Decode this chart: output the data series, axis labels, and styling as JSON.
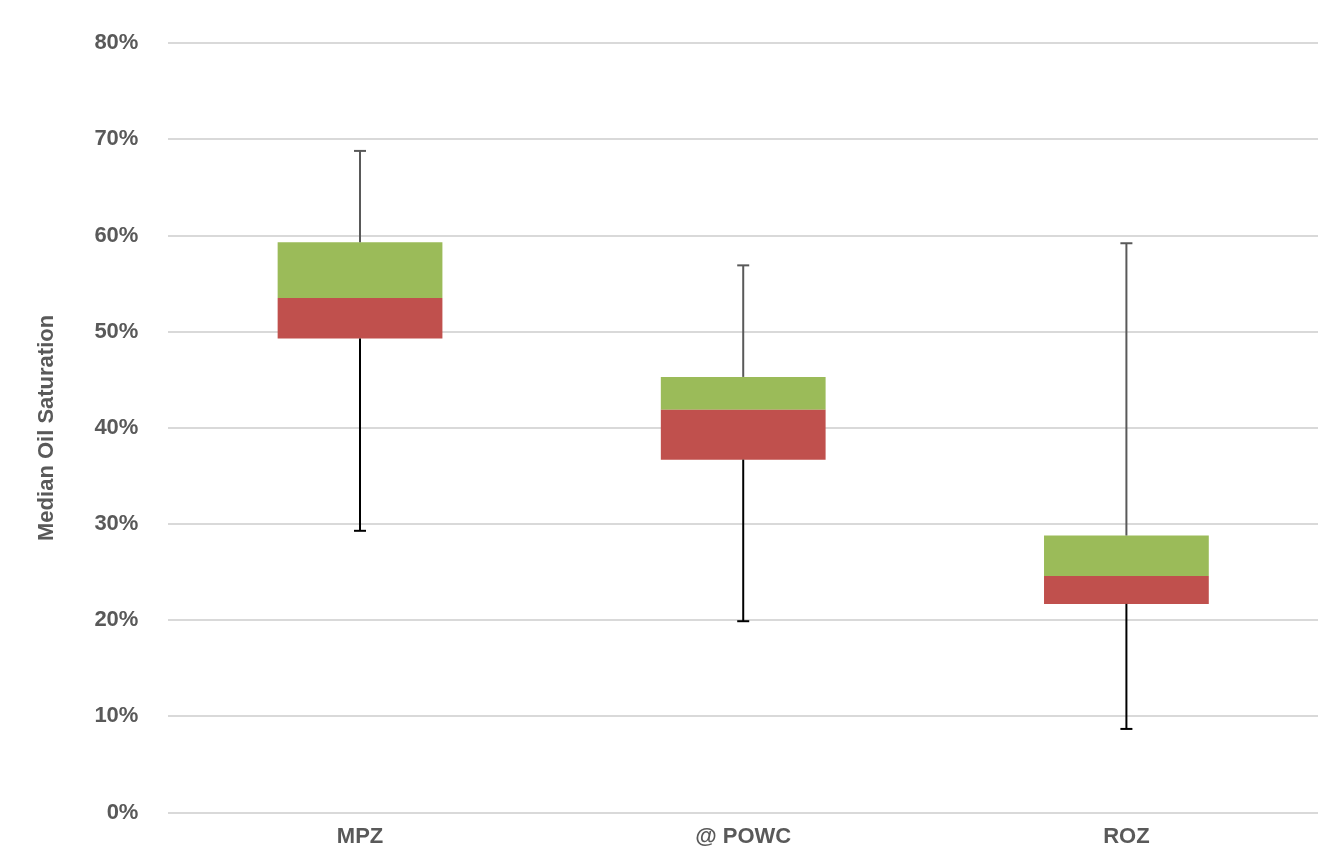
{
  "chart_data": {
    "type": "box",
    "ylabel": "Median Oil Saturation",
    "categories": [
      "MPZ",
      "@ POWC",
      "ROZ"
    ],
    "colors": [
      "#c0504d",
      "#c0504d",
      "#c0504d"
    ],
    "color": "#9bbb59",
    "boxes": [
      {
        "low": 29.3,
        "q1": 49.3,
        "median": 53.5,
        "q3": 59.3,
        "high": 68.8
      },
      {
        "low": 19.9,
        "q1": 36.7,
        "median": 41.9,
        "q3": 45.3,
        "high": 56.9
      },
      {
        "low": 8.7,
        "q1": 21.7,
        "median": 24.6,
        "q3": 28.8,
        "high": 59.2
      }
    ],
    "ylim": [
      0,
      80
    ],
    "yticks": [
      {
        "value": 0,
        "label": "0%"
      },
      {
        "value": 10,
        "label": "10%"
      },
      {
        "value": 20,
        "label": "20%"
      },
      {
        "value": 30,
        "label": "30%"
      },
      {
        "value": 40,
        "label": "40%"
      },
      {
        "value": 50,
        "label": "50%"
      },
      {
        "value": 60,
        "label": "60%"
      },
      {
        "value": 70,
        "label": "70%"
      },
      {
        "value": 80,
        "label": "80%"
      }
    ],
    "grid": "y"
  }
}
